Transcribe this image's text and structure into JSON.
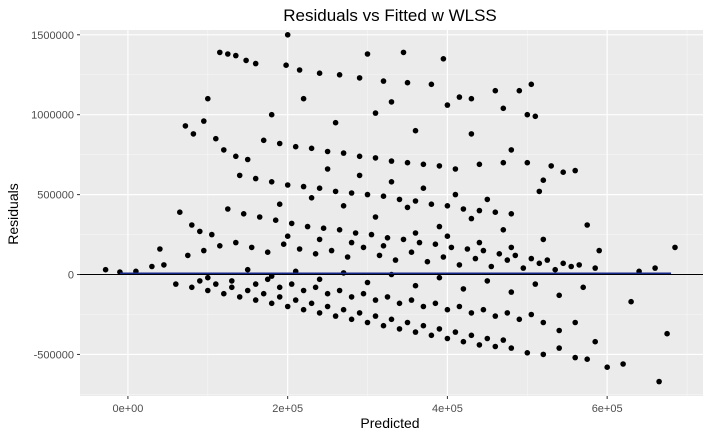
{
  "chart_data": {
    "type": "scatter",
    "title": "Residuals vs Fitted w WLSS",
    "xlabel": "Predicted",
    "ylabel": "Residuals",
    "xlim": [
      -60000,
      720000
    ],
    "ylim": [
      -760000,
      1530000
    ],
    "x_ticks": [
      {
        "value": 0,
        "label": "0e+00"
      },
      {
        "value": 200000,
        "label": "2e+05"
      },
      {
        "value": 400000,
        "label": "4e+05"
      },
      {
        "value": 600000,
        "label": "6e+05"
      }
    ],
    "y_ticks": [
      {
        "value": -500000,
        "label": "-500000"
      },
      {
        "value": 0,
        "label": "0"
      },
      {
        "value": 500000,
        "label": "500000"
      },
      {
        "value": 1000000,
        "label": "1000000"
      },
      {
        "value": 1500000,
        "label": "1500000"
      }
    ],
    "grid": true,
    "reference_line": {
      "y": 0,
      "color": "#000000"
    },
    "fit_line": {
      "x": [
        -10000,
        680000
      ],
      "y": [
        8000,
        8000
      ],
      "color": "#1a2a8c"
    },
    "point_color": "#000000",
    "points": [
      [
        -28000,
        30000
      ],
      [
        -10000,
        15000
      ],
      [
        10000,
        20000
      ],
      [
        30000,
        50000
      ],
      [
        45000,
        60000
      ],
      [
        40000,
        160000
      ],
      [
        65000,
        390000
      ],
      [
        72000,
        930000
      ],
      [
        82000,
        880000
      ],
      [
        95000,
        960000
      ],
      [
        100000,
        1100000
      ],
      [
        115000,
        1390000
      ],
      [
        125000,
        1380000
      ],
      [
        135000,
        1370000
      ],
      [
        148000,
        1340000
      ],
      [
        160000,
        1320000
      ],
      [
        198000,
        1310000
      ],
      [
        200000,
        1500000
      ],
      [
        215000,
        1280000
      ],
      [
        240000,
        1260000
      ],
      [
        265000,
        1250000
      ],
      [
        290000,
        1230000
      ],
      [
        320000,
        1210000
      ],
      [
        350000,
        1200000
      ],
      [
        380000,
        1190000
      ],
      [
        300000,
        1380000
      ],
      [
        345000,
        1390000
      ],
      [
        395000,
        1350000
      ],
      [
        415000,
        1110000
      ],
      [
        430000,
        1100000
      ],
      [
        460000,
        1150000
      ],
      [
        490000,
        1150000
      ],
      [
        500000,
        1000000
      ],
      [
        510000,
        990000
      ],
      [
        505000,
        1190000
      ],
      [
        110000,
        850000
      ],
      [
        120000,
        780000
      ],
      [
        135000,
        740000
      ],
      [
        150000,
        720000
      ],
      [
        170000,
        840000
      ],
      [
        190000,
        820000
      ],
      [
        210000,
        800000
      ],
      [
        230000,
        790000
      ],
      [
        250000,
        770000
      ],
      [
        270000,
        760000
      ],
      [
        290000,
        740000
      ],
      [
        310000,
        730000
      ],
      [
        330000,
        710000
      ],
      [
        350000,
        700000
      ],
      [
        370000,
        690000
      ],
      [
        390000,
        680000
      ],
      [
        410000,
        660000
      ],
      [
        440000,
        690000
      ],
      [
        470000,
        700000
      ],
      [
        500000,
        700000
      ],
      [
        530000,
        680000
      ],
      [
        545000,
        640000
      ],
      [
        560000,
        650000
      ],
      [
        520000,
        590000
      ],
      [
        515000,
        520000
      ],
      [
        140000,
        620000
      ],
      [
        160000,
        600000
      ],
      [
        180000,
        580000
      ],
      [
        200000,
        560000
      ],
      [
        220000,
        550000
      ],
      [
        240000,
        540000
      ],
      [
        260000,
        520000
      ],
      [
        280000,
        510000
      ],
      [
        300000,
        500000
      ],
      [
        320000,
        490000
      ],
      [
        340000,
        470000
      ],
      [
        360000,
        460000
      ],
      [
        380000,
        440000
      ],
      [
        400000,
        430000
      ],
      [
        420000,
        410000
      ],
      [
        440000,
        400000
      ],
      [
        460000,
        390000
      ],
      [
        480000,
        380000
      ],
      [
        575000,
        310000
      ],
      [
        590000,
        150000
      ],
      [
        80000,
        310000
      ],
      [
        90000,
        270000
      ],
      [
        105000,
        250000
      ],
      [
        125000,
        410000
      ],
      [
        145000,
        380000
      ],
      [
        165000,
        360000
      ],
      [
        185000,
        340000
      ],
      [
        205000,
        320000
      ],
      [
        225000,
        300000
      ],
      [
        245000,
        290000
      ],
      [
        265000,
        280000
      ],
      [
        285000,
        260000
      ],
      [
        305000,
        250000
      ],
      [
        325000,
        230000
      ],
      [
        345000,
        220000
      ],
      [
        365000,
        200000
      ],
      [
        385000,
        190000
      ],
      [
        405000,
        170000
      ],
      [
        425000,
        160000
      ],
      [
        445000,
        150000
      ],
      [
        465000,
        130000
      ],
      [
        485000,
        120000
      ],
      [
        505000,
        100000
      ],
      [
        525000,
        90000
      ],
      [
        545000,
        70000
      ],
      [
        565000,
        60000
      ],
      [
        585000,
        40000
      ],
      [
        660000,
        40000
      ],
      [
        685000,
        170000
      ],
      [
        640000,
        20000
      ],
      [
        75000,
        120000
      ],
      [
        95000,
        150000
      ],
      [
        115000,
        180000
      ],
      [
        135000,
        200000
      ],
      [
        155000,
        170000
      ],
      [
        175000,
        140000
      ],
      [
        195000,
        190000
      ],
      [
        215000,
        160000
      ],
      [
        235000,
        130000
      ],
      [
        255000,
        150000
      ],
      [
        275000,
        110000
      ],
      [
        295000,
        170000
      ],
      [
        315000,
        120000
      ],
      [
        335000,
        90000
      ],
      [
        355000,
        140000
      ],
      [
        375000,
        80000
      ],
      [
        395000,
        110000
      ],
      [
        415000,
        60000
      ],
      [
        435000,
        100000
      ],
      [
        455000,
        50000
      ],
      [
        475000,
        90000
      ],
      [
        495000,
        40000
      ],
      [
        515000,
        70000
      ],
      [
        535000,
        30000
      ],
      [
        555000,
        50000
      ],
      [
        60000,
        -60000
      ],
      [
        80000,
        -80000
      ],
      [
        100000,
        -100000
      ],
      [
        120000,
        -120000
      ],
      [
        140000,
        -140000
      ],
      [
        160000,
        -160000
      ],
      [
        180000,
        -180000
      ],
      [
        200000,
        -200000
      ],
      [
        220000,
        -220000
      ],
      [
        240000,
        -240000
      ],
      [
        260000,
        -260000
      ],
      [
        280000,
        -280000
      ],
      [
        300000,
        -300000
      ],
      [
        320000,
        -320000
      ],
      [
        340000,
        -340000
      ],
      [
        360000,
        -360000
      ],
      [
        380000,
        -380000
      ],
      [
        400000,
        -400000
      ],
      [
        420000,
        -420000
      ],
      [
        440000,
        -440000
      ],
      [
        460000,
        -450000
      ],
      [
        480000,
        -460000
      ],
      [
        500000,
        -490000
      ],
      [
        520000,
        -500000
      ],
      [
        540000,
        -460000
      ],
      [
        560000,
        -520000
      ],
      [
        575000,
        -530000
      ],
      [
        585000,
        -420000
      ],
      [
        600000,
        -580000
      ],
      [
        620000,
        -560000
      ],
      [
        630000,
        -170000
      ],
      [
        665000,
        -670000
      ],
      [
        675000,
        -370000
      ],
      [
        540000,
        -350000
      ],
      [
        560000,
        -300000
      ],
      [
        90000,
        -40000
      ],
      [
        110000,
        -60000
      ],
      [
        130000,
        -80000
      ],
      [
        150000,
        -100000
      ],
      [
        170000,
        -120000
      ],
      [
        190000,
        -140000
      ],
      [
        210000,
        -160000
      ],
      [
        230000,
        -180000
      ],
      [
        250000,
        -200000
      ],
      [
        270000,
        -220000
      ],
      [
        290000,
        -240000
      ],
      [
        310000,
        -260000
      ],
      [
        330000,
        -280000
      ],
      [
        350000,
        -300000
      ],
      [
        370000,
        -320000
      ],
      [
        390000,
        -340000
      ],
      [
        410000,
        -360000
      ],
      [
        430000,
        -380000
      ],
      [
        450000,
        -400000
      ],
      [
        470000,
        -410000
      ],
      [
        100000,
        -20000
      ],
      [
        130000,
        -40000
      ],
      [
        160000,
        -60000
      ],
      [
        190000,
        -80000
      ],
      [
        220000,
        -100000
      ],
      [
        250000,
        -120000
      ],
      [
        280000,
        -140000
      ],
      [
        310000,
        -160000
      ],
      [
        340000,
        -180000
      ],
      [
        370000,
        -200000
      ],
      [
        400000,
        -220000
      ],
      [
        430000,
        -240000
      ],
      [
        460000,
        -260000
      ],
      [
        490000,
        -280000
      ],
      [
        520000,
        -300000
      ],
      [
        150000,
        30000
      ],
      [
        180000,
        -10000
      ],
      [
        210000,
        20000
      ],
      [
        240000,
        -30000
      ],
      [
        270000,
        10000
      ],
      [
        300000,
        -50000
      ],
      [
        330000,
        0
      ],
      [
        360000,
        -70000
      ],
      [
        390000,
        -20000
      ],
      [
        420000,
        -90000
      ],
      [
        450000,
        -40000
      ],
      [
        480000,
        -110000
      ],
      [
        510000,
        -60000
      ],
      [
        540000,
        -130000
      ],
      [
        570000,
        -80000
      ],
      [
        175000,
        -30000
      ],
      [
        205000,
        -60000
      ],
      [
        235000,
        -80000
      ],
      [
        265000,
        -100000
      ],
      [
        295000,
        -120000
      ],
      [
        325000,
        -140000
      ],
      [
        355000,
        -160000
      ],
      [
        385000,
        -180000
      ],
      [
        415000,
        -200000
      ],
      [
        445000,
        -220000
      ],
      [
        475000,
        -240000
      ],
      [
        505000,
        -250000
      ],
      [
        190000,
        440000
      ],
      [
        230000,
        480000
      ],
      [
        270000,
        430000
      ],
      [
        310000,
        360000
      ],
      [
        350000,
        420000
      ],
      [
        390000,
        300000
      ],
      [
        430000,
        350000
      ],
      [
        470000,
        280000
      ],
      [
        200000,
        240000
      ],
      [
        240000,
        220000
      ],
      [
        280000,
        200000
      ],
      [
        320000,
        180000
      ],
      [
        360000,
        260000
      ],
      [
        400000,
        240000
      ],
      [
        440000,
        200000
      ],
      [
        480000,
        170000
      ],
      [
        520000,
        220000
      ],
      [
        250000,
        660000
      ],
      [
        290000,
        620000
      ],
      [
        330000,
        580000
      ],
      [
        370000,
        540000
      ],
      [
        410000,
        500000
      ],
      [
        450000,
        470000
      ],
      [
        180000,
        1000000
      ],
      [
        260000,
        950000
      ],
      [
        310000,
        1010000
      ],
      [
        360000,
        900000
      ],
      [
        430000,
        880000
      ],
      [
        480000,
        780000
      ],
      [
        220000,
        1100000
      ],
      [
        330000,
        1080000
      ],
      [
        400000,
        1060000
      ],
      [
        470000,
        1040000
      ]
    ]
  }
}
